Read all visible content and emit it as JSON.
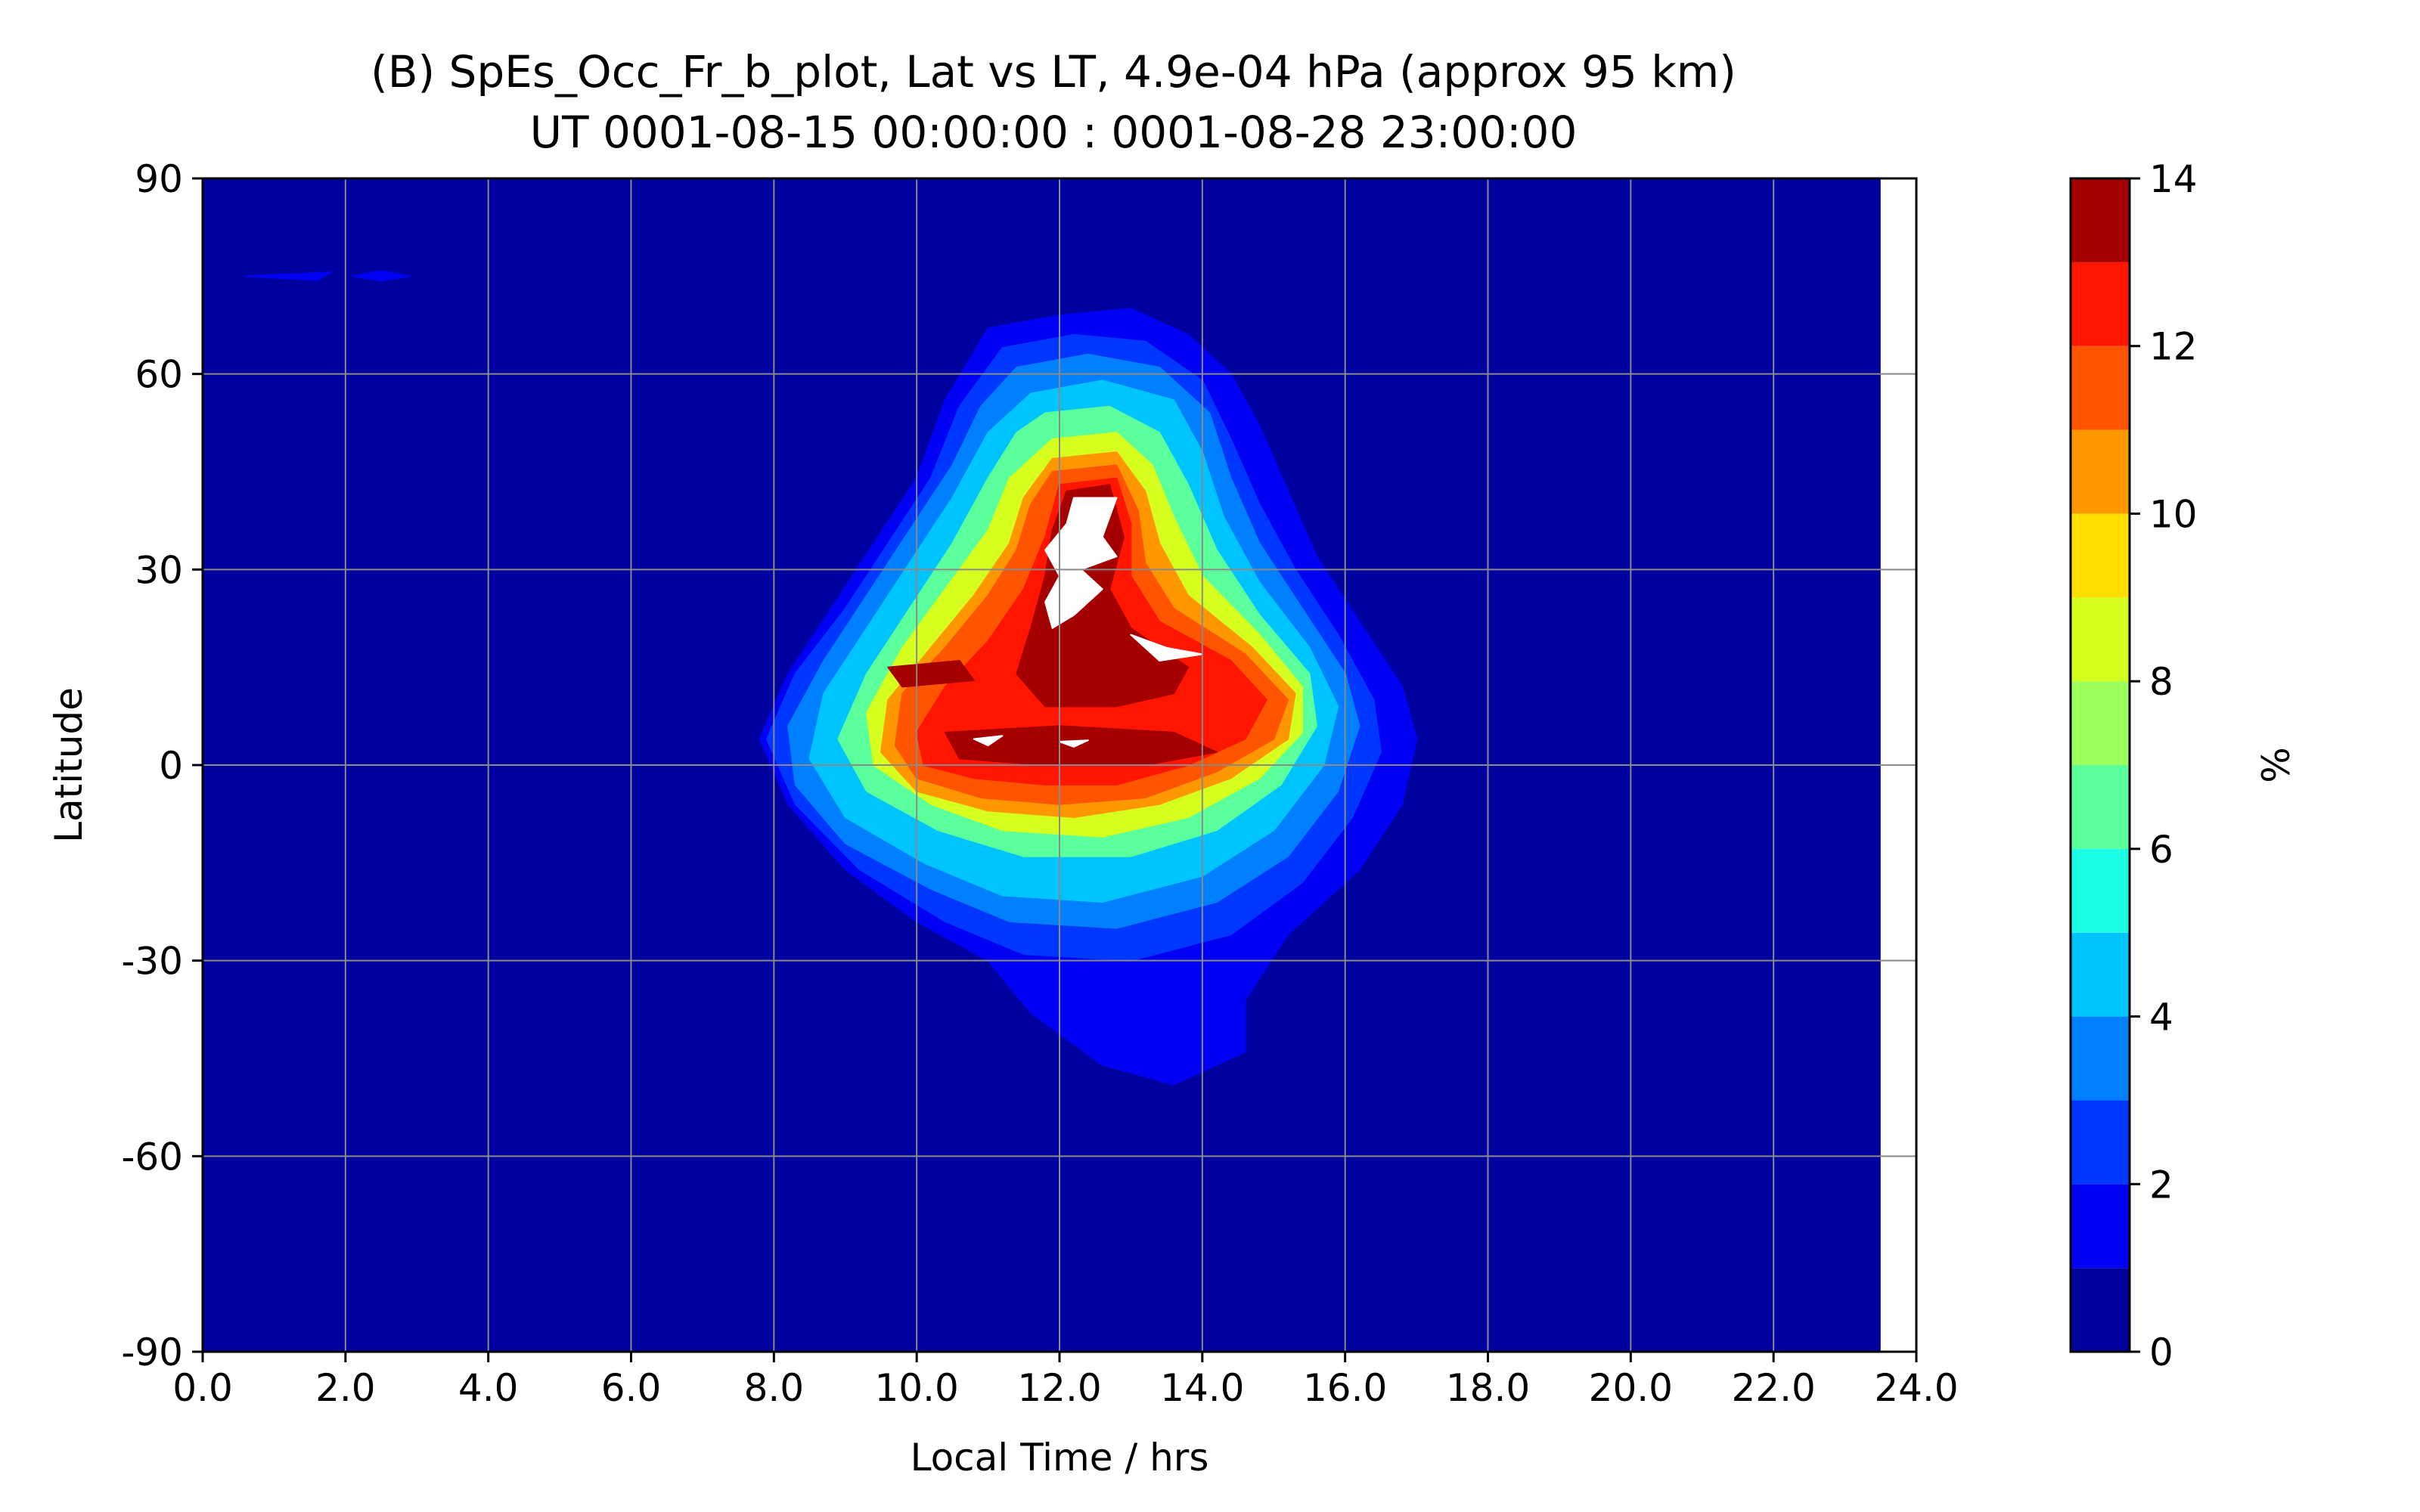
{
  "chart_data": {
    "type": "heatmap",
    "title": "(B) SpEs_Occ_Fr_b_plot, Lat vs LT, 4.9e-04 hPa (approx 95 km)",
    "subtitle": "UT 0001-08-15 00:00:00 : 0001-08-28 23:00:00",
    "xlabel": "Local Time / hrs",
    "ylabel": "Latitude",
    "xlim": [
      0,
      24
    ],
    "ylim": [
      -90,
      90
    ],
    "x_data_extent": [
      0,
      23.5
    ],
    "xticks": [
      "0.0",
      "2.0",
      "4.0",
      "6.0",
      "8.0",
      "10.0",
      "12.0",
      "14.0",
      "16.0",
      "18.0",
      "20.0",
      "22.0",
      "24.0"
    ],
    "yticks": [
      "-90",
      "-60",
      "-30",
      "0",
      "30",
      "60",
      "90"
    ],
    "grid": true,
    "colorbar": {
      "label": "%",
      "range": [
        0,
        14
      ],
      "ticks": [
        "0",
        "2",
        "4",
        "6",
        "8",
        "10",
        "12",
        "14"
      ],
      "levels": [
        0,
        1,
        2,
        3,
        4,
        5,
        6,
        7,
        8,
        9,
        10,
        11,
        12,
        13,
        14
      ],
      "colors": [
        "#00009f",
        "#0000f2",
        "#0037ff",
        "#0080ff",
        "#00c4ff",
        "#1affe5",
        "#5bff9c",
        "#9cff5b",
        "#d6ff1f",
        "#ffde00",
        "#ff9700",
        "#ff5500",
        "#ff1500",
        "#a50000"
      ],
      "over_color": "#ffffff"
    },
    "peak": {
      "value": 14,
      "local_time": 12.5,
      "latitude": 35
    },
    "contours": [
      {
        "level": 1,
        "points": [
          [
            11.0,
            67
          ],
          [
            12.0,
            69
          ],
          [
            13.0,
            70
          ],
          [
            13.8,
            66
          ],
          [
            14.4,
            60
          ],
          [
            14.8,
            52
          ],
          [
            15.2,
            42
          ],
          [
            15.6,
            32
          ],
          [
            16.2,
            22
          ],
          [
            16.8,
            12
          ],
          [
            17.0,
            4
          ],
          [
            16.8,
            -6
          ],
          [
            16.2,
            -16
          ],
          [
            15.2,
            -26
          ],
          [
            14.6,
            -36
          ],
          [
            14.6,
            -44
          ],
          [
            13.6,
            -49
          ],
          [
            12.6,
            -46
          ],
          [
            11.6,
            -38
          ],
          [
            11.0,
            -30
          ],
          [
            10.0,
            -24
          ],
          [
            9.0,
            -16
          ],
          [
            8.2,
            -6
          ],
          [
            7.8,
            4
          ],
          [
            8.2,
            14
          ],
          [
            8.8,
            24
          ],
          [
            9.4,
            34
          ],
          [
            10.0,
            44
          ],
          [
            10.4,
            56
          ]
        ]
      },
      {
        "level": 2,
        "points": [
          [
            11.2,
            64
          ],
          [
            12.2,
            66
          ],
          [
            13.2,
            65
          ],
          [
            14.0,
            59
          ],
          [
            14.4,
            50
          ],
          [
            14.8,
            40
          ],
          [
            15.3,
            30
          ],
          [
            15.9,
            20
          ],
          [
            16.4,
            10
          ],
          [
            16.5,
            2
          ],
          [
            16.1,
            -8
          ],
          [
            15.4,
            -18
          ],
          [
            14.4,
            -26
          ],
          [
            13.0,
            -30
          ],
          [
            11.5,
            -29
          ],
          [
            10.4,
            -24
          ],
          [
            9.2,
            -16
          ],
          [
            8.3,
            -6
          ],
          [
            7.9,
            4
          ],
          [
            8.3,
            14
          ],
          [
            9.0,
            24
          ],
          [
            9.6,
            34
          ],
          [
            10.2,
            44
          ],
          [
            10.6,
            55
          ]
        ]
      },
      {
        "level": 3,
        "points": [
          [
            11.4,
            61
          ],
          [
            12.4,
            63
          ],
          [
            13.4,
            61
          ],
          [
            14.1,
            54
          ],
          [
            14.4,
            44
          ],
          [
            14.8,
            34
          ],
          [
            15.4,
            24
          ],
          [
            16.0,
            14
          ],
          [
            16.2,
            6
          ],
          [
            15.9,
            -4
          ],
          [
            15.2,
            -14
          ],
          [
            14.2,
            -21
          ],
          [
            12.8,
            -25
          ],
          [
            11.3,
            -24
          ],
          [
            10.2,
            -19
          ],
          [
            9.0,
            -12
          ],
          [
            8.3,
            -3
          ],
          [
            8.2,
            6
          ],
          [
            8.7,
            16
          ],
          [
            9.3,
            26
          ],
          [
            9.9,
            36
          ],
          [
            10.5,
            46
          ],
          [
            10.9,
            55
          ]
        ]
      },
      {
        "level": 4,
        "points": [
          [
            11.6,
            57
          ],
          [
            12.6,
            59
          ],
          [
            13.6,
            56
          ],
          [
            14.0,
            48
          ],
          [
            14.3,
            38
          ],
          [
            14.8,
            28
          ],
          [
            15.5,
            18
          ],
          [
            15.9,
            9
          ],
          [
            15.7,
            0
          ],
          [
            15.0,
            -10
          ],
          [
            14.0,
            -17
          ],
          [
            12.6,
            -21
          ],
          [
            11.2,
            -20
          ],
          [
            10.1,
            -15
          ],
          [
            9.0,
            -8
          ],
          [
            8.5,
            1
          ],
          [
            8.7,
            11
          ],
          [
            9.3,
            21
          ],
          [
            9.9,
            31
          ],
          [
            10.5,
            41
          ],
          [
            11.0,
            51
          ]
        ]
      },
      {
        "level": 6,
        "points": [
          [
            11.8,
            54
          ],
          [
            12.7,
            55
          ],
          [
            13.4,
            51
          ],
          [
            13.8,
            43
          ],
          [
            14.2,
            33
          ],
          [
            14.8,
            23
          ],
          [
            15.5,
            14
          ],
          [
            15.6,
            6
          ],
          [
            15.1,
            -3
          ],
          [
            14.2,
            -10
          ],
          [
            13.0,
            -14
          ],
          [
            11.5,
            -14
          ],
          [
            10.3,
            -10
          ],
          [
            9.3,
            -4
          ],
          [
            8.9,
            4
          ],
          [
            9.3,
            14
          ],
          [
            9.9,
            24
          ],
          [
            10.5,
            34
          ],
          [
            11.0,
            44
          ],
          [
            11.4,
            51
          ]
        ]
      },
      {
        "level": 8,
        "points": [
          [
            11.9,
            50
          ],
          [
            12.8,
            51
          ],
          [
            13.3,
            46
          ],
          [
            13.6,
            38
          ],
          [
            14.0,
            29
          ],
          [
            14.8,
            20
          ],
          [
            15.4,
            12
          ],
          [
            15.4,
            5
          ],
          [
            14.8,
            -2
          ],
          [
            13.8,
            -8
          ],
          [
            12.6,
            -11
          ],
          [
            11.2,
            -10
          ],
          [
            10.2,
            -6
          ],
          [
            9.4,
            0
          ],
          [
            9.3,
            8
          ],
          [
            9.8,
            18
          ],
          [
            10.4,
            27
          ],
          [
            11.0,
            36
          ],
          [
            11.3,
            44
          ]
        ]
      },
      {
        "level": 10,
        "points": [
          [
            11.9,
            47
          ],
          [
            12.8,
            48
          ],
          [
            13.2,
            42
          ],
          [
            13.4,
            34
          ],
          [
            13.8,
            26
          ],
          [
            14.7,
            18
          ],
          [
            15.3,
            11
          ],
          [
            15.2,
            4
          ],
          [
            14.4,
            -2
          ],
          [
            13.4,
            -6
          ],
          [
            12.2,
            -8
          ],
          [
            11.0,
            -7
          ],
          [
            10.0,
            -4
          ],
          [
            9.5,
            2
          ],
          [
            9.6,
            10
          ],
          [
            10.2,
            18
          ],
          [
            10.8,
            26
          ],
          [
            11.3,
            34
          ],
          [
            11.5,
            41
          ]
        ]
      },
      {
        "level": 11,
        "points": [
          [
            11.9,
            45
          ],
          [
            12.8,
            46
          ],
          [
            13.1,
            39
          ],
          [
            13.2,
            31
          ],
          [
            13.6,
            24
          ],
          [
            14.6,
            17
          ],
          [
            15.2,
            10
          ],
          [
            15.0,
            4
          ],
          [
            14.2,
            -1
          ],
          [
            13.2,
            -5
          ],
          [
            12.0,
            -6
          ],
          [
            10.9,
            -5
          ],
          [
            10.0,
            -2
          ],
          [
            9.7,
            3
          ],
          [
            9.8,
            11
          ],
          [
            10.4,
            18
          ],
          [
            11.0,
            26
          ],
          [
            11.4,
            33
          ],
          [
            11.6,
            40
          ]
        ]
      },
      {
        "level": 12,
        "points": [
          [
            12.0,
            43
          ],
          [
            12.8,
            44
          ],
          [
            13.0,
            37
          ],
          [
            13.0,
            29
          ],
          [
            13.4,
            22
          ],
          [
            14.4,
            16
          ],
          [
            14.9,
            10
          ],
          [
            14.6,
            4
          ],
          [
            13.8,
            0
          ],
          [
            12.8,
            -3
          ],
          [
            11.8,
            -3
          ],
          [
            10.8,
            -2
          ],
          [
            10.1,
            0
          ],
          [
            10.0,
            5
          ],
          [
            10.4,
            12
          ],
          [
            11.0,
            19
          ],
          [
            11.5,
            27
          ],
          [
            11.8,
            35
          ]
        ]
      },
      {
        "level": 13,
        "points": [
          [
            12.1,
            42
          ],
          [
            12.7,
            43
          ],
          [
            12.9,
            35
          ],
          [
            12.7,
            27
          ],
          [
            13.0,
            21
          ],
          [
            13.8,
            15
          ],
          [
            13.6,
            11
          ],
          [
            12.8,
            9
          ],
          [
            11.8,
            9
          ],
          [
            11.4,
            14
          ],
          [
            11.6,
            21
          ],
          [
            11.8,
            29
          ],
          [
            11.9,
            36
          ]
        ]
      },
      {
        "level": 13,
        "points": [
          [
            10.4,
            5
          ],
          [
            12.0,
            6
          ],
          [
            13.6,
            5
          ],
          [
            14.2,
            2
          ],
          [
            13.2,
            0
          ],
          [
            11.8,
            0
          ],
          [
            10.6,
            1
          ]
        ]
      },
      {
        "level": 13,
        "points": [
          [
            9.6,
            15
          ],
          [
            10.6,
            16
          ],
          [
            10.8,
            13
          ],
          [
            9.8,
            12
          ]
        ]
      },
      {
        "level": 14,
        "points": [
          [
            12.2,
            41
          ],
          [
            12.8,
            41
          ],
          [
            12.6,
            35
          ],
          [
            12.8,
            32
          ],
          [
            12.3,
            30
          ],
          [
            12.6,
            27
          ],
          [
            12.2,
            23
          ],
          [
            11.9,
            21
          ],
          [
            11.8,
            25
          ],
          [
            12.0,
            29
          ],
          [
            11.8,
            33
          ],
          [
            12.1,
            37
          ]
        ]
      },
      {
        "level": 14,
        "points": [
          [
            13.0,
            20
          ],
          [
            13.5,
            18
          ],
          [
            14.0,
            17
          ],
          [
            13.4,
            16
          ]
        ]
      },
      {
        "level": 14,
        "points": [
          [
            10.8,
            4
          ],
          [
            11.2,
            4.5
          ],
          [
            11.0,
            3
          ]
        ]
      },
      {
        "level": 14,
        "points": [
          [
            12.0,
            3.6
          ],
          [
            12.4,
            3.8
          ],
          [
            12.2,
            2.8
          ]
        ]
      },
      {
        "level": 1,
        "points": [
          [
            0.6,
            75
          ],
          [
            1.8,
            75.6
          ],
          [
            1.6,
            74.4
          ]
        ]
      },
      {
        "level": 1,
        "points": [
          [
            2.1,
            75
          ],
          [
            2.5,
            75.8
          ],
          [
            2.9,
            75
          ],
          [
            2.5,
            74.3
          ]
        ]
      }
    ]
  }
}
